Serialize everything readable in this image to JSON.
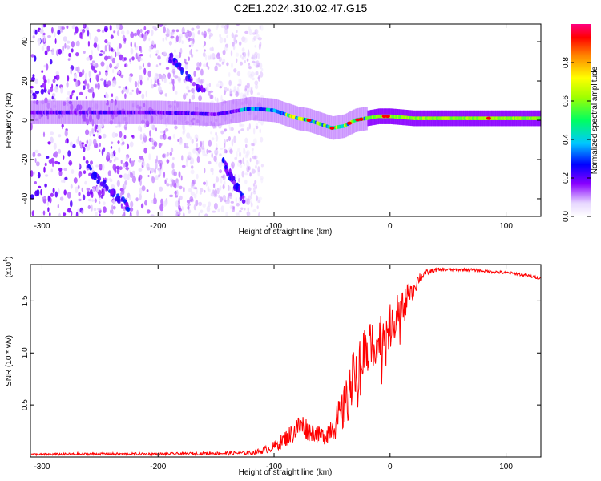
{
  "title": "C2E1.2024.310.02.47.G15",
  "chart_data": [
    {
      "type": "heatmap",
      "xlabel": "Height of straight line (km)",
      "ylabel": "Frequency (Hz)",
      "xlim": [
        -310,
        130
      ],
      "ylim": [
        -49,
        49
      ],
      "xticks": [
        -300,
        -200,
        -100,
        0,
        100
      ],
      "yticks": [
        -40,
        -20,
        0,
        20,
        40
      ],
      "colorbar": {
        "label": "Normalized spectral amplitude",
        "range": [
          0,
          1
        ],
        "ticks": [
          "0.0",
          "0.2",
          "0.4",
          "0.6",
          "0.8"
        ]
      },
      "ridge": {
        "x": [
          -310,
          -250,
          -200,
          -150,
          -120,
          -100,
          -80,
          -70,
          -60,
          -50,
          -40,
          -30,
          -20,
          -10,
          0,
          20,
          50,
          100,
          130
        ],
        "freq_hz": [
          4,
          4,
          4,
          3,
          6,
          5,
          1,
          0,
          -2,
          -4,
          -3,
          0,
          1,
          2,
          2,
          1,
          1,
          1,
          1
        ]
      },
      "secondary_streaks": [
        {
          "x": [
            -190,
            -160
          ],
          "freq_hz": [
            32,
            14
          ]
        },
        {
          "x": [
            -145,
            -125
          ],
          "freq_hz": [
            -20,
            -42
          ]
        },
        {
          "x": [
            -260,
            -225
          ],
          "freq_hz": [
            -25,
            -45
          ]
        }
      ]
    },
    {
      "type": "line",
      "xlabel": "Height of straight line (km)",
      "ylabel": "SNR (10 * v/v)",
      "multiplier": "(x10",
      "multiplier_exp": "4",
      "xlim": [
        -310,
        130
      ],
      "ylim": [
        0,
        1.85
      ],
      "xticks": [
        -300,
        -200,
        -100,
        0,
        100
      ],
      "yticks": [
        0.5,
        1.0,
        1.5
      ],
      "ytick_labels": [
        "0.5",
        "1.0",
        "1.5"
      ],
      "series": [
        {
          "name": "SNR",
          "color": "#ff0000",
          "x": [
            -310,
            -250,
            -200,
            -150,
            -120,
            -110,
            -100,
            -95,
            -90,
            -85,
            -80,
            -75,
            -70,
            -65,
            -60,
            -55,
            -50,
            -45,
            -40,
            -35,
            -30,
            -25,
            -20,
            -15,
            -10,
            -5,
            0,
            5,
            10,
            15,
            20,
            25,
            30,
            40,
            50,
            60,
            70,
            80,
            90,
            100,
            110,
            120,
            130
          ],
          "y": [
            0.025,
            0.03,
            0.03,
            0.035,
            0.04,
            0.06,
            0.1,
            0.14,
            0.18,
            0.22,
            0.28,
            0.3,
            0.25,
            0.24,
            0.2,
            0.22,
            0.3,
            0.35,
            0.45,
            0.62,
            0.8,
            0.95,
            1.05,
            1.12,
            1.15,
            1.18,
            1.25,
            1.35,
            1.42,
            1.52,
            1.62,
            1.72,
            1.77,
            1.8,
            1.8,
            1.8,
            1.8,
            1.79,
            1.78,
            1.77,
            1.76,
            1.74,
            1.72
          ],
          "noise": [
            0.01,
            0.012,
            0.012,
            0.015,
            0.02,
            0.03,
            0.05,
            0.07,
            0.08,
            0.1,
            0.12,
            0.12,
            0.1,
            0.09,
            0.08,
            0.1,
            0.14,
            0.18,
            0.22,
            0.25,
            0.28,
            0.28,
            0.26,
            0.25,
            0.24,
            0.22,
            0.22,
            0.2,
            0.18,
            0.14,
            0.1,
            0.06,
            0.03,
            0.02,
            0.015,
            0.015,
            0.015,
            0.015,
            0.015,
            0.015,
            0.015,
            0.015,
            0.015
          ]
        }
      ]
    }
  ]
}
